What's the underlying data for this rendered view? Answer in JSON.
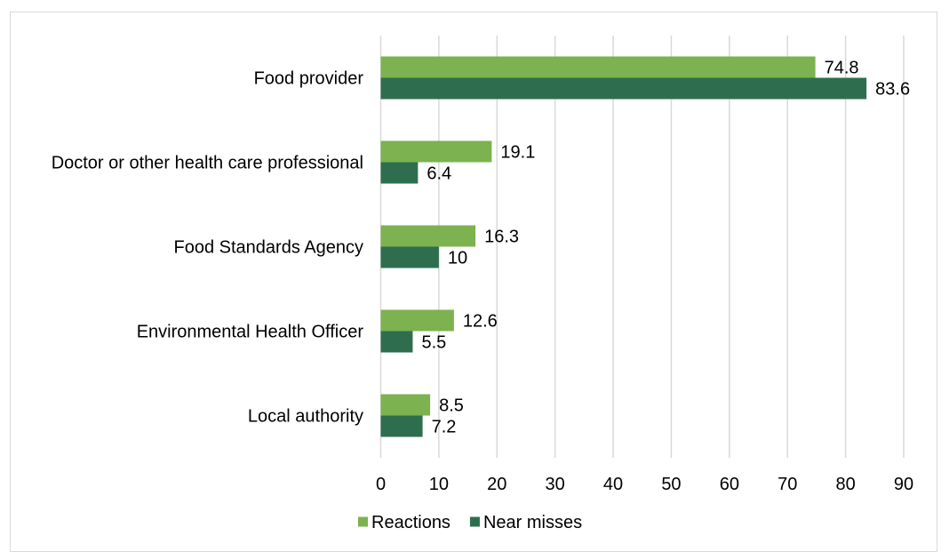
{
  "chart_data": {
    "type": "bar",
    "orientation": "horizontal",
    "categories": [
      "Food provider",
      "Doctor or other health care professional",
      "Food Standards Agency",
      "Environmental Health Officer",
      "Local authority"
    ],
    "series": [
      {
        "name": "Reactions",
        "color": "#7cb24f",
        "values": [
          74.8,
          19.1,
          16.3,
          12.6,
          8.5
        ]
      },
      {
        "name": "Near misses",
        "color": "#2e6e4f",
        "values": [
          83.6,
          6.4,
          10,
          5.5,
          7.2
        ]
      }
    ],
    "value_labels": [
      [
        "74.8",
        "19.1",
        "16.3",
        "12.6",
        "8.5"
      ],
      [
        "83.6",
        "6.4",
        "10",
        "5.5",
        "7.2"
      ]
    ],
    "xlim": [
      0,
      90
    ],
    "xticks": [
      0,
      10,
      20,
      30,
      40,
      50,
      60,
      70,
      80,
      90
    ],
    "grid": "vertical",
    "legend_position": "bottom",
    "title": "",
    "xlabel": "",
    "ylabel": ""
  }
}
